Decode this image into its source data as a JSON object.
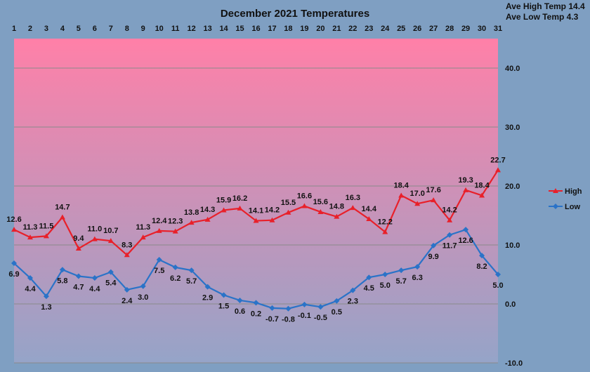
{
  "chart_data": {
    "type": "line",
    "title": "December 2021 Temperatures",
    "xlabel": "",
    "ylabel": "",
    "categories": [
      "1",
      "2",
      "3",
      "4",
      "5",
      "6",
      "7",
      "8",
      "9",
      "10",
      "11",
      "12",
      "13",
      "14",
      "15",
      "16",
      "17",
      "18",
      "19",
      "20",
      "21",
      "22",
      "23",
      "24",
      "25",
      "26",
      "27",
      "28",
      "29",
      "30",
      "31"
    ],
    "ylim": [
      -10,
      45
    ],
    "y_ticks": [
      "-10.0",
      "0.0",
      "10.0",
      "20.0",
      "30.0",
      "40.0"
    ],
    "grid": true,
    "legend_position": "right",
    "summary": [
      "Ave High Temp 14.4",
      "Ave Low Temp 4.3"
    ],
    "series": [
      {
        "name": "High",
        "color": "#e8202a",
        "marker": "triangle",
        "values": [
          12.6,
          11.3,
          11.5,
          14.7,
          9.4,
          11.0,
          10.7,
          8.3,
          11.3,
          12.4,
          12.3,
          13.8,
          14.3,
          15.9,
          16.2,
          14.1,
          14.2,
          15.5,
          16.6,
          15.6,
          14.8,
          16.3,
          14.4,
          12.2,
          18.4,
          17.0,
          17.6,
          14.2,
          19.3,
          18.4,
          22.7
        ]
      },
      {
        "name": "Low",
        "color": "#2a73c8",
        "marker": "diamond",
        "values": [
          6.9,
          4.4,
          1.3,
          5.8,
          4.7,
          4.4,
          5.4,
          2.4,
          3.0,
          7.5,
          6.2,
          5.7,
          2.9,
          1.5,
          0.6,
          0.2,
          -0.7,
          -0.8,
          -0.1,
          -0.5,
          0.5,
          2.3,
          4.5,
          5.0,
          5.7,
          6.3,
          9.9,
          11.7,
          12.6,
          8.2,
          5.0
        ]
      }
    ],
    "data_labels": {
      "High": [
        "12.6",
        "11.3",
        "11.5",
        "14.7",
        "9.4",
        "11.0",
        "10.7",
        "8.3",
        "11.3",
        "12.4",
        "12.3",
        "13.8",
        "14.3",
        "15.9",
        "16.2",
        "14.1",
        "14.2",
        "15.5",
        "16.6",
        "15.6",
        "14.8",
        "16.3",
        "14.4",
        "12.2",
        "18.4",
        "17.0",
        "17.6",
        "14.2",
        "19.3",
        "18.4",
        "22.7"
      ],
      "Low": [
        "6.9",
        "4.4",
        "1.3",
        "5.8",
        "4.7",
        "4.4",
        "5.4",
        "2.4",
        "3.0",
        "7.5",
        "6.2",
        "5.7",
        "2.9",
        "1.5",
        "0.6",
        "0.2",
        "-0.7",
        "-0.8",
        "-0.1",
        "-0.5",
        "0.5",
        "2.3",
        "4.5",
        "5.0",
        "5.7",
        "6.3",
        "9.9",
        "11.7",
        "12.6",
        "8.2",
        "5.0"
      ]
    },
    "plot_background": {
      "top": "#ff80a8",
      "bottom": "#95a4c8"
    }
  }
}
